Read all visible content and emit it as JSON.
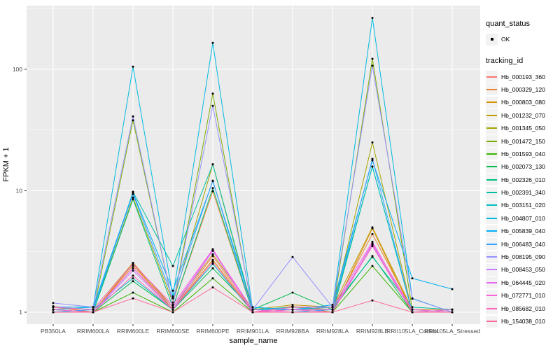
{
  "figure": {
    "panel_bg": "#EBEBEB",
    "grid_color": "#FFFFFF",
    "tick_text_color": "#4D4D4D",
    "tick_mark_color": "#333333",
    "point_color": "#000000"
  },
  "legend": {
    "quant_status_title": "quant_status",
    "quant_status_items": [
      {
        "label": "OK",
        "symbol": "point"
      }
    ],
    "tracking_title": "tracking_id"
  },
  "chart_data": {
    "type": "line",
    "title": "",
    "xlabel": "sample_name",
    "ylabel": "FPKM + 1",
    "y_scale": "log10",
    "y_ticks": [
      1,
      10,
      100
    ],
    "y_minor_ticks": [
      3.162,
      31.62,
      316.2
    ],
    "ylim": [
      0.8,
      340
    ],
    "grid": true,
    "legend_position": "right",
    "categories": [
      "PB350LA",
      "RRIM600LA",
      "RRIM600LE",
      "RRIM600SE",
      "RRIM600PE",
      "RRIM901LA",
      "RRIM928BA",
      "RRIM928LA",
      "RRIM928LE",
      "RRII105LA_Control",
      "RRII105LA_Stressed"
    ],
    "series": [
      {
        "name": "Hb_000193_360",
        "color": "#F8766D",
        "values": [
          1.1,
          1.0,
          2.3,
          1.05,
          2.9,
          1.0,
          1.05,
          1.05,
          3.6,
          1.0,
          1.0
        ]
      },
      {
        "name": "Hb_000329_120",
        "color": "#EA8331",
        "values": [
          1.12,
          1.0,
          2.4,
          1.1,
          9.9,
          1.0,
          1.1,
          1.05,
          4.4,
          1.05,
          1.05
        ]
      },
      {
        "name": "Hb_000803_080",
        "color": "#D89000",
        "values": [
          1.05,
          1.0,
          2.5,
          1.05,
          2.7,
          1.0,
          1.12,
          1.0,
          4.9,
          1.0,
          1.0
        ]
      },
      {
        "name": "Hb_001232_070",
        "color": "#C09B00",
        "values": [
          1.1,
          1.05,
          2.55,
          1.1,
          3.0,
          1.05,
          1.15,
          1.1,
          5.0,
          1.05,
          1.0
        ]
      },
      {
        "name": "Hb_001345_050",
        "color": "#A3A500",
        "values": [
          1.0,
          1.0,
          8.8,
          1.2,
          16.5,
          1.0,
          1.05,
          1.05,
          25.0,
          1.0,
          1.0
        ]
      },
      {
        "name": "Hb_001472_150",
        "color": "#7CAE00",
        "values": [
          1.0,
          1.0,
          38.0,
          1.15,
          63.0,
          1.0,
          1.0,
          1.0,
          122,
          1.05,
          1.0
        ]
      },
      {
        "name": "Hb_001593_040",
        "color": "#39B600",
        "values": [
          1.0,
          1.0,
          1.45,
          1.0,
          1.9,
          1.0,
          1.0,
          1.0,
          2.4,
          1.0,
          1.0
        ]
      },
      {
        "name": "Hb_002073_130",
        "color": "#00BB4E",
        "values": [
          1.05,
          1.0,
          1.8,
          1.05,
          2.3,
          1.05,
          1.45,
          1.05,
          2.9,
          1.0,
          1.05
        ]
      },
      {
        "name": "Hb_002326_010",
        "color": "#00BF7D",
        "values": [
          1.0,
          1.0,
          8.5,
          1.1,
          10.5,
          1.0,
          1.05,
          1.0,
          15.8,
          1.0,
          1.0
        ]
      },
      {
        "name": "Hb_002391_340",
        "color": "#00C1A3",
        "values": [
          1.05,
          1.0,
          9.8,
          2.4,
          16.5,
          1.05,
          1.1,
          1.1,
          2.85,
          1.1,
          1.05
        ]
      },
      {
        "name": "Hb_003151_020",
        "color": "#00BFC4",
        "values": [
          1.0,
          1.05,
          1.9,
          1.05,
          2.5,
          1.0,
          1.0,
          1.05,
          15.8,
          1.0,
          1.0
        ]
      },
      {
        "name": "Hb_004807_010",
        "color": "#00BAE0",
        "values": [
          1.05,
          1.1,
          105,
          1.35,
          165,
          1.05,
          1.05,
          1.1,
          265,
          1.3,
          1.0
        ]
      },
      {
        "name": "Hb_005839_040",
        "color": "#00B0F6",
        "values": [
          1.1,
          1.1,
          9.6,
          1.5,
          12.0,
          1.1,
          1.05,
          1.15,
          17.8,
          1.9,
          1.55
        ]
      },
      {
        "name": "Hb_006483_040",
        "color": "#35A2FF",
        "values": [
          1.0,
          1.05,
          9.4,
          1.3,
          12.1,
          1.0,
          1.0,
          1.05,
          18.3,
          1.0,
          1.0
        ]
      },
      {
        "name": "Hb_008195_090",
        "color": "#9590FF",
        "values": [
          1.19,
          1.1,
          41.0,
          1.15,
          50.0,
          1.05,
          2.85,
          1.1,
          107,
          1.29,
          1.0
        ]
      },
      {
        "name": "Hb_008453_050",
        "color": "#C77CFF",
        "values": [
          1.05,
          1.0,
          2.2,
          1.05,
          3.2,
          1.0,
          1.05,
          1.05,
          3.6,
          1.0,
          1.0
        ]
      },
      {
        "name": "Hb_064445_020",
        "color": "#E76BF3",
        "values": [
          1.0,
          1.0,
          2.3,
          1.1,
          3.25,
          1.05,
          1.0,
          1.0,
          3.7,
          1.05,
          1.0
        ]
      },
      {
        "name": "Hb_072771_010",
        "color": "#FA62DB",
        "values": [
          1.1,
          1.05,
          2.5,
          1.15,
          3.3,
          1.0,
          1.1,
          1.1,
          3.8,
          1.0,
          1.05
        ]
      },
      {
        "name": "Hb_085682_010",
        "color": "#FF62BC",
        "values": [
          1.05,
          1.0,
          2.0,
          1.05,
          2.6,
          1.0,
          1.05,
          1.0,
          3.5,
          1.0,
          1.0
        ]
      },
      {
        "name": "Hb_154038_010",
        "color": "#FF6A98",
        "values": [
          1.0,
          1.0,
          1.3,
          1.0,
          1.6,
          1.0,
          1.0,
          1.0,
          1.25,
          1.0,
          1.0
        ]
      }
    ]
  }
}
